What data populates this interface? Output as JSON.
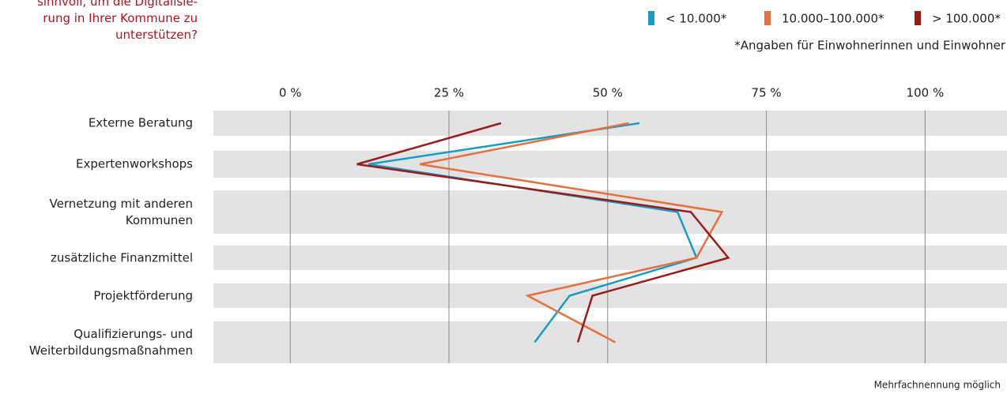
{
  "chart_data": {
    "type": "line",
    "orientation": "horizontal",
    "title_lines": [
      "sinnvoll, um die Digitalisie-",
      "rung in Ihrer Kommune zu",
      "unterstützen?"
    ],
    "note": "*Angaben für Einwohnerinnen und Einwohner",
    "footnote": "Mehrfachnennung möglich",
    "categories": [
      "Externe Beratung",
      "Expertenworkshops",
      "Vernetzung mit anderen\nKommunen",
      "zusätzliche Finanzmittel",
      "Projektförderung",
      "Qualifizierungs- und\nWeiterbildungsmaßnahmen"
    ],
    "series": [
      {
        "name": "< 10.000*",
        "color": "#1a9bc7",
        "values": [
          55,
          12.3,
          61,
          64,
          44,
          38.5
        ]
      },
      {
        "name": "10.000–100.000*",
        "color": "#e8703f",
        "values": [
          53.3,
          20.4,
          68,
          64,
          37.4,
          51.2
        ]
      },
      {
        "name": "> 100.000*",
        "color": "#9b1b1b",
        "values": [
          33.2,
          10.5,
          63.1,
          69,
          47.6,
          45.3
        ]
      }
    ],
    "xlim": [
      -12.1,
      112.9
    ],
    "xticks": [
      {
        "value": 0,
        "label": "0 %"
      },
      {
        "value": 25,
        "label": "25 %"
      },
      {
        "value": 50,
        "label": "50 %"
      },
      {
        "value": 75,
        "label": "75 %"
      },
      {
        "value": 100,
        "label": "100 %"
      }
    ],
    "grid": true
  }
}
